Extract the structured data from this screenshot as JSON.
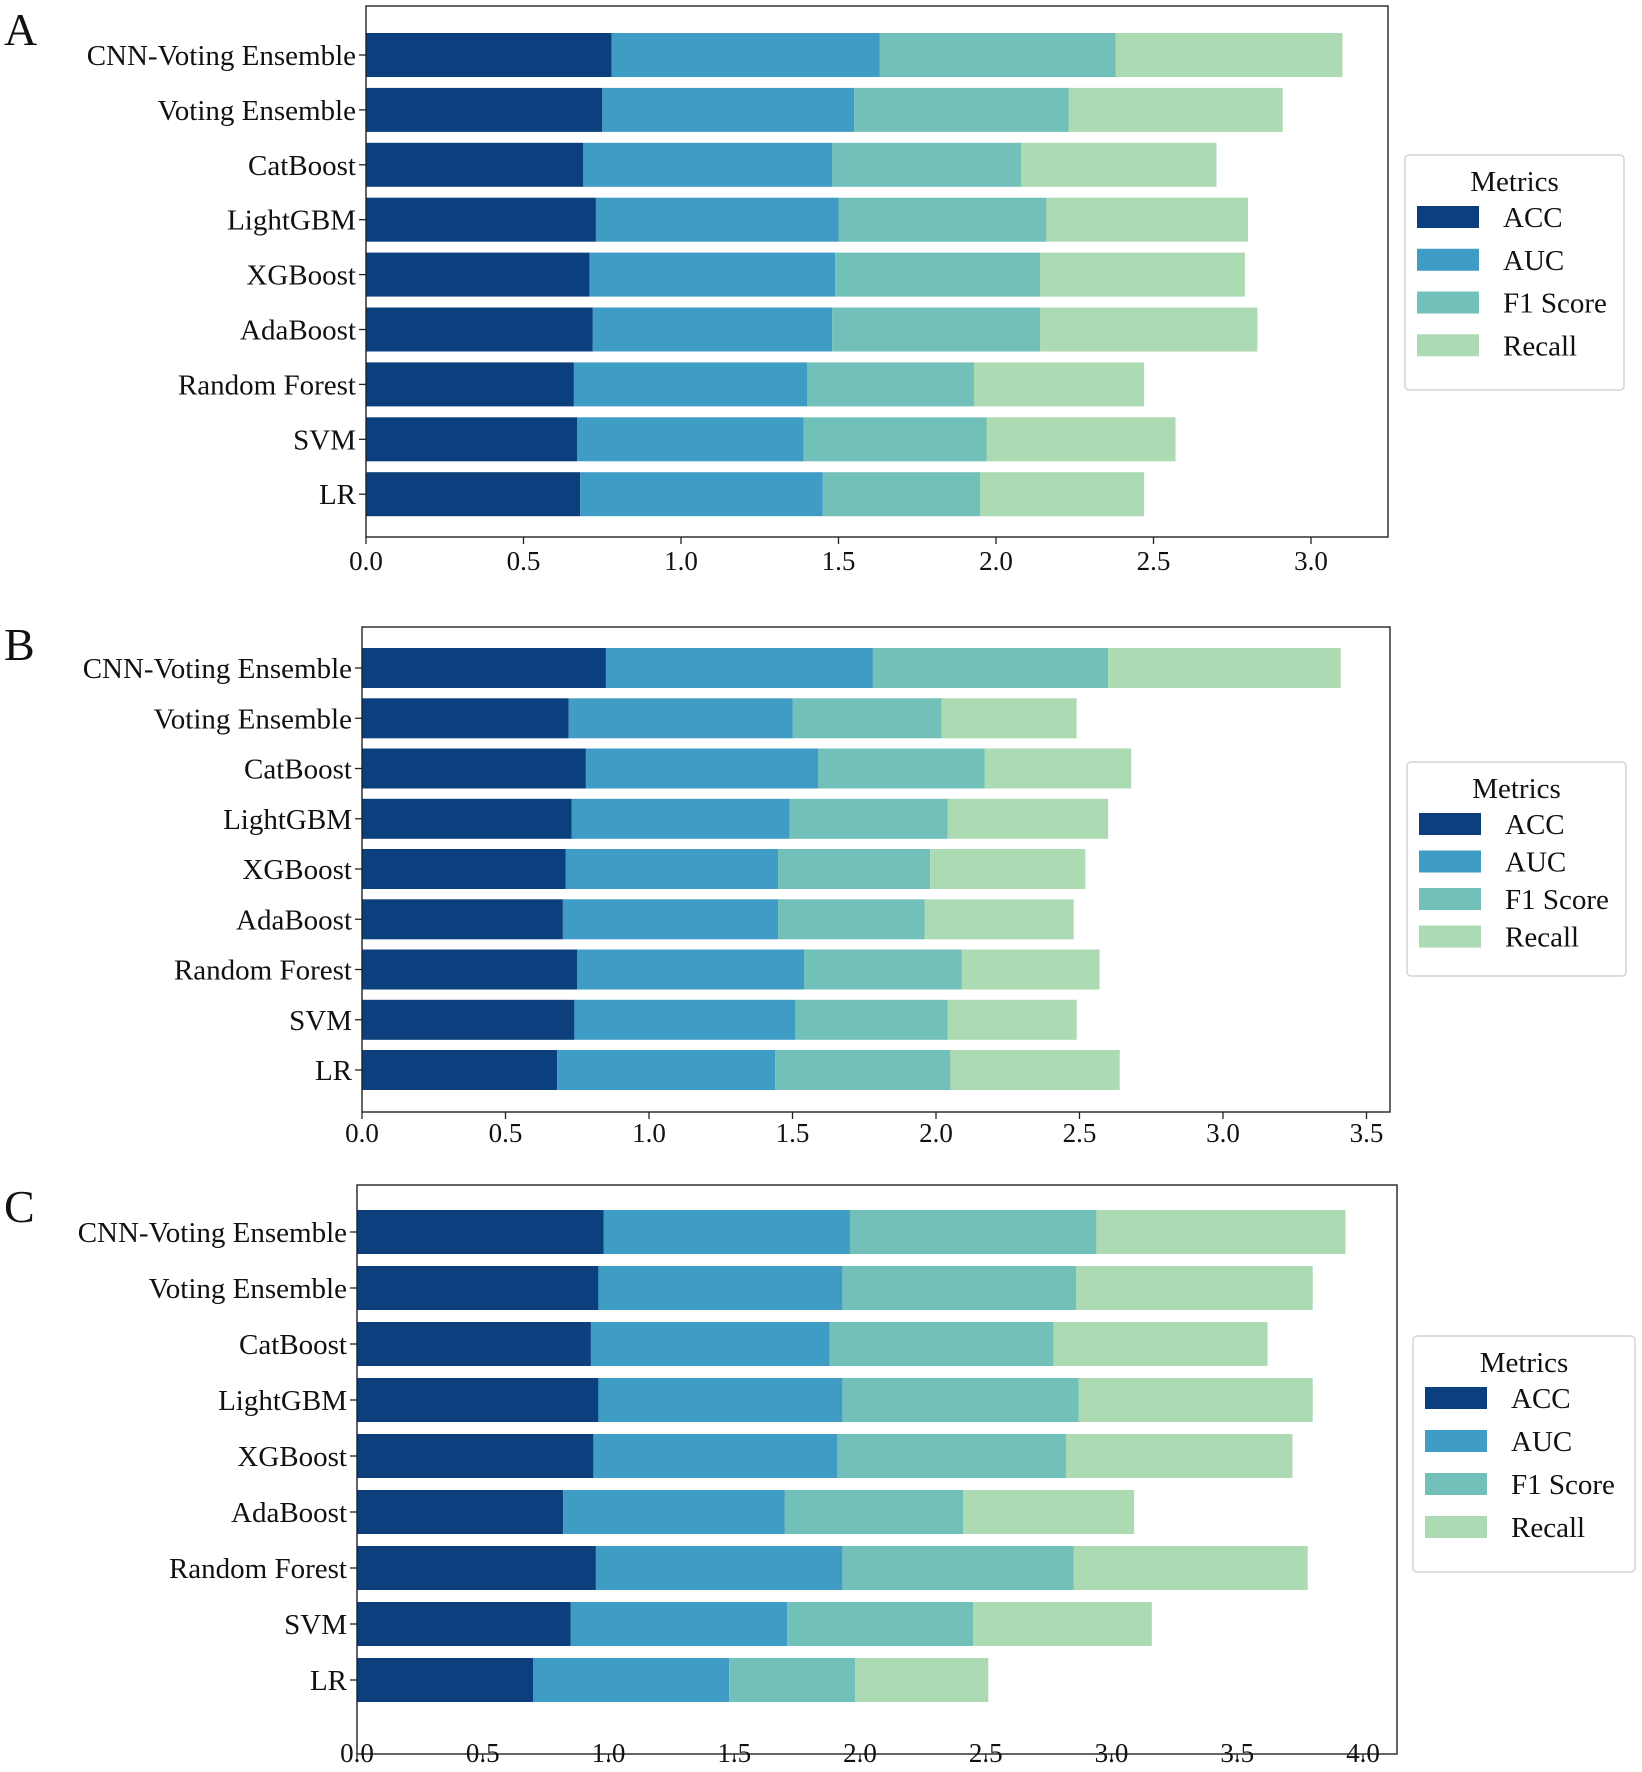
{
  "colors": {
    "ACC": "#0b3f7e",
    "AUC": "#3f9cc5",
    "F1 Score": "#72c0ba",
    "Recall": "#acdab2"
  },
  "chart_data": [
    {
      "type": "bar",
      "orientation": "horizontal",
      "stacked": true,
      "panel_label": "A",
      "title": "",
      "xlabel": "",
      "ylabel": "",
      "legend_title": "Metrics",
      "legend_position": "right",
      "xlim": [
        0,
        3.25
      ],
      "xticks": [
        "0.0",
        "0.5",
        "1.0",
        "1.5",
        "2.0",
        "2.5",
        "3.0"
      ],
      "categories": [
        "CNN-Voting Ensemble",
        "Voting Ensemble",
        "CatBoost",
        "LightGBM",
        "XGBoost",
        "AdaBoost",
        "Random Forest",
        "SVM",
        "LR"
      ],
      "series": [
        {
          "name": "ACC",
          "values": [
            0.78,
            0.75,
            0.69,
            0.73,
            0.71,
            0.72,
            0.66,
            0.67,
            0.68
          ]
        },
        {
          "name": "AUC",
          "values": [
            0.85,
            0.8,
            0.79,
            0.77,
            0.78,
            0.76,
            0.74,
            0.72,
            0.77
          ]
        },
        {
          "name": "F1 Score",
          "values": [
            0.75,
            0.68,
            0.6,
            0.66,
            0.65,
            0.66,
            0.53,
            0.58,
            0.5
          ]
        },
        {
          "name": "Recall",
          "values": [
            0.72,
            0.68,
            0.62,
            0.64,
            0.65,
            0.69,
            0.54,
            0.6,
            0.52
          ]
        }
      ]
    },
    {
      "type": "bar",
      "orientation": "horizontal",
      "stacked": true,
      "panel_label": "B",
      "title": "",
      "xlabel": "",
      "ylabel": "",
      "legend_title": "Metrics",
      "legend_position": "right",
      "xlim": [
        0,
        3.58
      ],
      "xticks": [
        "0.0",
        "0.5",
        "1.0",
        "1.5",
        "2.0",
        "2.5",
        "3.0",
        "3.5"
      ],
      "categories": [
        "CNN-Voting Ensemble",
        "Voting Ensemble",
        "CatBoost",
        "LightGBM",
        "XGBoost",
        "AdaBoost",
        "Random Forest",
        "SVM",
        "LR"
      ],
      "series": [
        {
          "name": "ACC",
          "values": [
            0.85,
            0.72,
            0.78,
            0.73,
            0.71,
            0.7,
            0.75,
            0.74,
            0.68
          ]
        },
        {
          "name": "AUC",
          "values": [
            0.93,
            0.78,
            0.81,
            0.76,
            0.74,
            0.75,
            0.79,
            0.77,
            0.76
          ]
        },
        {
          "name": "F1 Score",
          "values": [
            0.82,
            0.52,
            0.58,
            0.55,
            0.53,
            0.51,
            0.55,
            0.53,
            0.61
          ]
        },
        {
          "name": "Recall",
          "values": [
            0.81,
            0.47,
            0.51,
            0.56,
            0.54,
            0.52,
            0.48,
            0.45,
            0.59
          ]
        }
      ]
    },
    {
      "type": "bar",
      "orientation": "horizontal",
      "stacked": true,
      "panel_label": "C",
      "title": "",
      "xlabel": "",
      "ylabel": "",
      "legend_title": "Metrics",
      "legend_position": "right",
      "xlim": [
        0,
        4.12
      ],
      "xticks": [
        "0.0",
        "0.5",
        "1.0",
        "1.5",
        "2.0",
        "2.5",
        "3.0",
        "3.5",
        "4.0"
      ],
      "categories": [
        "CNN-Voting Ensemble",
        "Voting Ensemble",
        "CatBoost",
        "LightGBM",
        "XGBoost",
        "AdaBoost",
        "Random Forest",
        "SVM",
        "LR"
      ],
      "series": [
        {
          "name": "ACC",
          "values": [
            0.98,
            0.96,
            0.93,
            0.96,
            0.94,
            0.82,
            0.95,
            0.85,
            0.7
          ]
        },
        {
          "name": "AUC",
          "values": [
            0.98,
            0.97,
            0.95,
            0.97,
            0.97,
            0.88,
            0.98,
            0.86,
            0.78
          ]
        },
        {
          "name": "F1 Score",
          "values": [
            0.98,
            0.93,
            0.89,
            0.94,
            0.91,
            0.71,
            0.92,
            0.74,
            0.5
          ]
        },
        {
          "name": "Recall",
          "values": [
            0.99,
            0.94,
            0.85,
            0.93,
            0.9,
            0.68,
            0.93,
            0.71,
            0.53
          ]
        }
      ]
    }
  ]
}
